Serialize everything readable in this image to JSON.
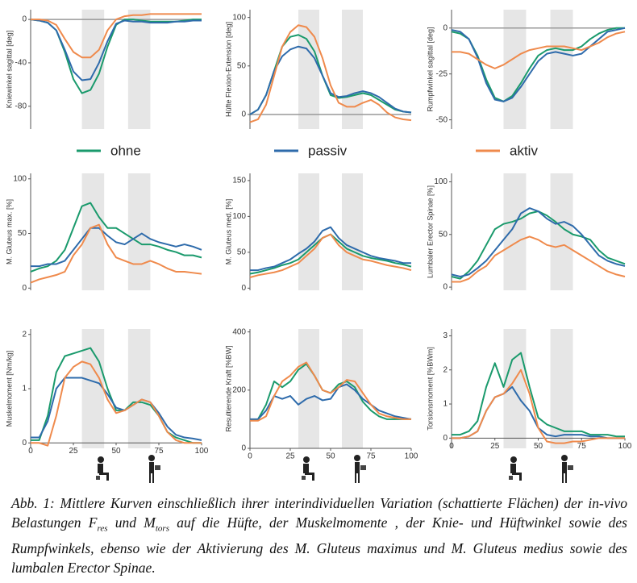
{
  "chart_data": [
    {
      "type": "line",
      "y_label": "Kniewinkel sagittal [deg]",
      "xlim": [
        0,
        100
      ],
      "ylim": [
        -101,
        9
      ],
      "yticks": [
        0,
        -40,
        -80
      ],
      "zero_line": true,
      "shaded_x": [
        [
          30,
          43
        ],
        [
          57,
          70
        ]
      ],
      "x": [
        0,
        5,
        10,
        15,
        20,
        25,
        30,
        35,
        40,
        45,
        50,
        55,
        60,
        65,
        70,
        75,
        80,
        85,
        90,
        95,
        100
      ],
      "series": [
        {
          "name": "ohne",
          "color": "#1a9a6c",
          "values": [
            0,
            -1,
            -3,
            -10,
            -30,
            -55,
            -68,
            -65,
            -50,
            -25,
            -5,
            0,
            0,
            -1,
            -2,
            -2,
            -2,
            -2,
            -1,
            0,
            0
          ]
        },
        {
          "name": "passiv",
          "color": "#2e6bab",
          "values": [
            0,
            -1,
            -3,
            -10,
            -28,
            -48,
            -56,
            -55,
            -40,
            -20,
            -4,
            -1,
            -2,
            -2,
            -3,
            -3,
            -3,
            -2,
            -2,
            -1,
            -1
          ]
        },
        {
          "name": "aktiv",
          "color": "#ef8a4c",
          "values": [
            0,
            0,
            -1,
            -5,
            -18,
            -30,
            -35,
            -35,
            -28,
            -10,
            0,
            3,
            4,
            4,
            5,
            5,
            5,
            5,
            5,
            5,
            5
          ]
        }
      ]
    },
    {
      "type": "line",
      "y_label": "Hüfte Flexion-Extension [deg]",
      "xlim": [
        0,
        100
      ],
      "ylim": [
        -15,
        108
      ],
      "yticks": [
        0,
        50,
        100
      ],
      "zero_line": true,
      "shaded_x": [
        [
          30,
          43
        ],
        [
          57,
          70
        ]
      ],
      "x": [
        0,
        5,
        10,
        15,
        20,
        25,
        30,
        35,
        40,
        45,
        50,
        55,
        60,
        65,
        70,
        75,
        80,
        85,
        90,
        95,
        100
      ],
      "series": [
        {
          "color": "#1a9a6c",
          "values": [
            0,
            5,
            20,
            45,
            70,
            80,
            82,
            78,
            65,
            40,
            20,
            17,
            18,
            20,
            22,
            20,
            15,
            10,
            5,
            3,
            2
          ]
        },
        {
          "color": "#2e6bab",
          "values": [
            0,
            5,
            20,
            45,
            60,
            67,
            70,
            68,
            58,
            40,
            22,
            18,
            19,
            22,
            24,
            22,
            18,
            12,
            6,
            3,
            2
          ]
        },
        {
          "color": "#ef8a4c",
          "values": [
            -8,
            -5,
            10,
            40,
            70,
            85,
            92,
            90,
            80,
            58,
            30,
            12,
            8,
            8,
            12,
            15,
            10,
            2,
            -3,
            -5,
            -6
          ]
        }
      ]
    },
    {
      "type": "line",
      "y_label": "Rumpfwinkel sagittal [deg]",
      "xlim": [
        0,
        100
      ],
      "ylim": [
        -55,
        10
      ],
      "yticks": [
        0,
        -25,
        -50
      ],
      "zero_line": true,
      "shaded_x": [
        [
          30,
          43
        ],
        [
          57,
          70
        ]
      ],
      "x": [
        0,
        5,
        10,
        15,
        20,
        25,
        30,
        35,
        40,
        45,
        50,
        55,
        60,
        65,
        70,
        75,
        80,
        85,
        90,
        95,
        100
      ],
      "series": [
        {
          "color": "#1a9a6c",
          "values": [
            -2,
            -3,
            -6,
            -15,
            -28,
            -38,
            -40,
            -37,
            -30,
            -22,
            -15,
            -12,
            -11,
            -12,
            -12,
            -10,
            -6,
            -3,
            -1,
            0,
            0
          ]
        },
        {
          "color": "#2e6bab",
          "values": [
            -1,
            -2,
            -6,
            -16,
            -30,
            -39,
            -40,
            -38,
            -32,
            -25,
            -18,
            -14,
            -13,
            -14,
            -15,
            -14,
            -10,
            -6,
            -2,
            -1,
            0
          ]
        },
        {
          "color": "#ef8a4c",
          "values": [
            -13,
            -13,
            -14,
            -17,
            -20,
            -22,
            -20,
            -17,
            -14,
            -12,
            -11,
            -10,
            -10,
            -10,
            -11,
            -12,
            -10,
            -8,
            -5,
            -3,
            -2
          ]
        }
      ]
    },
    {
      "type": "line",
      "y_label": "M. Gluteus max. [%]",
      "xlim": [
        0,
        100
      ],
      "ylim": [
        -2,
        105
      ],
      "yticks": [
        0,
        50,
        100
      ],
      "shaded_x": [
        [
          30,
          43
        ],
        [
          57,
          70
        ]
      ],
      "x": [
        0,
        5,
        10,
        15,
        20,
        25,
        30,
        35,
        40,
        45,
        50,
        55,
        60,
        65,
        70,
        75,
        80,
        85,
        90,
        95,
        100
      ],
      "series": [
        {
          "color": "#1a9a6c",
          "values": [
            15,
            18,
            20,
            25,
            35,
            55,
            75,
            78,
            65,
            55,
            55,
            50,
            45,
            40,
            40,
            38,
            35,
            33,
            30,
            30,
            28
          ]
        },
        {
          "color": "#2e6bab",
          "values": [
            20,
            20,
            22,
            22,
            25,
            35,
            45,
            55,
            55,
            48,
            42,
            40,
            45,
            50,
            45,
            42,
            40,
            38,
            40,
            38,
            35
          ]
        },
        {
          "color": "#ef8a4c",
          "values": [
            5,
            8,
            10,
            12,
            15,
            30,
            40,
            55,
            58,
            40,
            28,
            25,
            22,
            22,
            25,
            22,
            18,
            15,
            15,
            14,
            13
          ]
        }
      ]
    },
    {
      "type": "line",
      "y_label": "M. Gluteus med. [%]",
      "xlim": [
        0,
        100
      ],
      "ylim": [
        -3,
        160
      ],
      "yticks": [
        0,
        50,
        100,
        150
      ],
      "shaded_x": [
        [
          30,
          43
        ],
        [
          57,
          70
        ]
      ],
      "x": [
        0,
        5,
        10,
        15,
        20,
        25,
        30,
        35,
        40,
        45,
        50,
        55,
        60,
        65,
        70,
        75,
        80,
        85,
        90,
        95,
        100
      ],
      "series": [
        {
          "color": "#1a9a6c",
          "values": [
            20,
            22,
            25,
            28,
            32,
            35,
            40,
            50,
            60,
            70,
            75,
            65,
            55,
            50,
            45,
            42,
            40,
            38,
            35,
            33,
            30
          ]
        },
        {
          "color": "#2e6bab",
          "values": [
            25,
            25,
            28,
            30,
            35,
            40,
            48,
            55,
            65,
            80,
            85,
            70,
            60,
            55,
            50,
            45,
            42,
            40,
            38,
            35,
            35
          ]
        },
        {
          "color": "#ef8a4c",
          "values": [
            15,
            18,
            20,
            22,
            25,
            30,
            35,
            45,
            55,
            70,
            75,
            60,
            50,
            45,
            40,
            38,
            35,
            32,
            30,
            28,
            25
          ]
        }
      ]
    },
    {
      "type": "line",
      "y_label": "Lumbaler Erector Spinae [%]",
      "xlim": [
        0,
        100
      ],
      "ylim": [
        -3,
        108
      ],
      "yticks": [
        0,
        50,
        100
      ],
      "shaded_x": [
        [
          30,
          43
        ],
        [
          57,
          70
        ]
      ],
      "x": [
        0,
        5,
        10,
        15,
        20,
        25,
        30,
        35,
        40,
        45,
        50,
        55,
        60,
        65,
        70,
        75,
        80,
        85,
        90,
        95,
        100
      ],
      "series": [
        {
          "color": "#1a9a6c",
          "values": [
            10,
            8,
            15,
            25,
            40,
            55,
            60,
            62,
            65,
            70,
            72,
            68,
            62,
            55,
            50,
            48,
            45,
            35,
            28,
            25,
            22
          ]
        },
        {
          "color": "#2e6bab",
          "values": [
            12,
            10,
            12,
            18,
            25,
            35,
            45,
            55,
            70,
            75,
            72,
            65,
            60,
            62,
            58,
            50,
            40,
            30,
            25,
            22,
            20
          ]
        },
        {
          "color": "#ef8a4c",
          "values": [
            5,
            5,
            8,
            15,
            20,
            30,
            35,
            40,
            45,
            48,
            45,
            40,
            38,
            40,
            35,
            30,
            25,
            20,
            15,
            12,
            10
          ]
        }
      ]
    },
    {
      "type": "line",
      "y_label": "Muskelmoment [Nm/kg]",
      "xlim": [
        0,
        100
      ],
      "ylim": [
        -0.1,
        2.1
      ],
      "yticks": [
        0,
        1,
        2
      ],
      "xticks": [
        0,
        25,
        50,
        75,
        100
      ],
      "shaded_x": [
        [
          30,
          43
        ],
        [
          57,
          70
        ]
      ],
      "x": [
        0,
        5,
        10,
        15,
        20,
        25,
        30,
        35,
        40,
        45,
        50,
        55,
        60,
        65,
        70,
        75,
        80,
        85,
        90,
        95,
        100
      ],
      "series": [
        {
          "color": "#1a9a6c",
          "values": [
            0.05,
            0.05,
            0.5,
            1.3,
            1.6,
            1.65,
            1.7,
            1.75,
            1.5,
            1.0,
            0.6,
            0.6,
            0.75,
            0.75,
            0.7,
            0.5,
            0.2,
            0.1,
            0.05,
            0,
            0
          ]
        },
        {
          "color": "#2e6bab",
          "values": [
            0.1,
            0.1,
            0.4,
            1.0,
            1.2,
            1.2,
            1.2,
            1.15,
            1.1,
            0.9,
            0.65,
            0.6,
            0.7,
            0.8,
            0.75,
            0.55,
            0.3,
            0.15,
            0.1,
            0.08,
            0.05
          ]
        },
        {
          "color": "#ef8a4c",
          "values": [
            0,
            0,
            -0.05,
            0.5,
            1.2,
            1.4,
            1.5,
            1.45,
            1.2,
            0.8,
            0.55,
            0.6,
            0.7,
            0.8,
            0.75,
            0.5,
            0.2,
            0.05,
            0,
            0,
            0
          ]
        }
      ]
    },
    {
      "type": "line",
      "y_label": "Resultierende Kraft [%BW]",
      "xlim": [
        0,
        100
      ],
      "ylim": [
        0,
        410
      ],
      "yticks": [
        0,
        200,
        400
      ],
      "xticks": [
        0,
        25,
        50,
        75,
        100
      ],
      "shaded_x": [
        [
          30,
          43
        ],
        [
          57,
          70
        ]
      ],
      "x": [
        0,
        5,
        10,
        15,
        20,
        25,
        30,
        35,
        40,
        45,
        50,
        55,
        60,
        65,
        70,
        75,
        80,
        85,
        90,
        95,
        100
      ],
      "series": [
        {
          "color": "#1a9a6c",
          "values": [
            95,
            100,
            150,
            230,
            210,
            230,
            270,
            290,
            250,
            200,
            190,
            220,
            230,
            210,
            160,
            130,
            110,
            100,
            100,
            100,
            100
          ]
        },
        {
          "color": "#2e6bab",
          "values": [
            100,
            100,
            130,
            180,
            170,
            180,
            150,
            170,
            180,
            165,
            170,
            210,
            220,
            200,
            170,
            150,
            130,
            120,
            110,
            105,
            100
          ]
        },
        {
          "color": "#ef8a4c",
          "values": [
            95,
            95,
            110,
            180,
            230,
            250,
            280,
            295,
            250,
            200,
            190,
            210,
            235,
            230,
            190,
            150,
            120,
            110,
            105,
            100,
            100
          ]
        }
      ]
    },
    {
      "type": "line",
      "y_label": "Torsionsmoment [%BWm]",
      "xlim": [
        0,
        100
      ],
      "ylim": [
        -0.3,
        3.2
      ],
      "yticks": [
        0,
        1,
        2,
        3
      ],
      "xticks": [
        0,
        25,
        50,
        75,
        100
      ],
      "shaded_x": [
        [
          30,
          43
        ],
        [
          57,
          70
        ]
      ],
      "x": [
        0,
        5,
        10,
        15,
        20,
        25,
        30,
        35,
        40,
        45,
        50,
        55,
        60,
        65,
        70,
        75,
        80,
        85,
        90,
        95,
        100
      ],
      "series": [
        {
          "color": "#1a9a6c",
          "values": [
            0.1,
            0.1,
            0.2,
            0.5,
            1.5,
            2.2,
            1.5,
            2.3,
            2.5,
            1.5,
            0.6,
            0.4,
            0.3,
            0.2,
            0.2,
            0.2,
            0.1,
            0.1,
            0.1,
            0.05,
            0.05
          ]
        },
        {
          "color": "#2e6bab",
          "values": [
            0,
            0,
            0.05,
            0.2,
            0.8,
            1.2,
            1.3,
            1.5,
            1.1,
            0.8,
            0.3,
            0.1,
            0.05,
            0.1,
            0.1,
            0.1,
            0.05,
            0.05,
            0,
            0,
            0
          ]
        },
        {
          "color": "#ef8a4c",
          "values": [
            0,
            0,
            0.05,
            0.2,
            0.8,
            1.2,
            1.3,
            1.6,
            2.0,
            1.3,
            0.3,
            -0.1,
            -0.15,
            -0.15,
            -0.1,
            -0.1,
            -0.05,
            0,
            0,
            0,
            0
          ]
        }
      ]
    }
  ],
  "caption": [
    "Abb. 1: Mittlere Kurven einschließlich ihrer interindividuellen Variation (schattierte Flächen) der in-vivo Belastungen F",
    "res",
    " und M",
    "tors",
    " auf die Hüfte, der Muskelmomente , der Knie- und Hüftwinkel sowie des Rumpfwinkels, ebenso wie der Aktivierung des M. Gluteus maximus und M. Gluteus medius sowie des lumbalen Erector Spinae."
  ]
}
